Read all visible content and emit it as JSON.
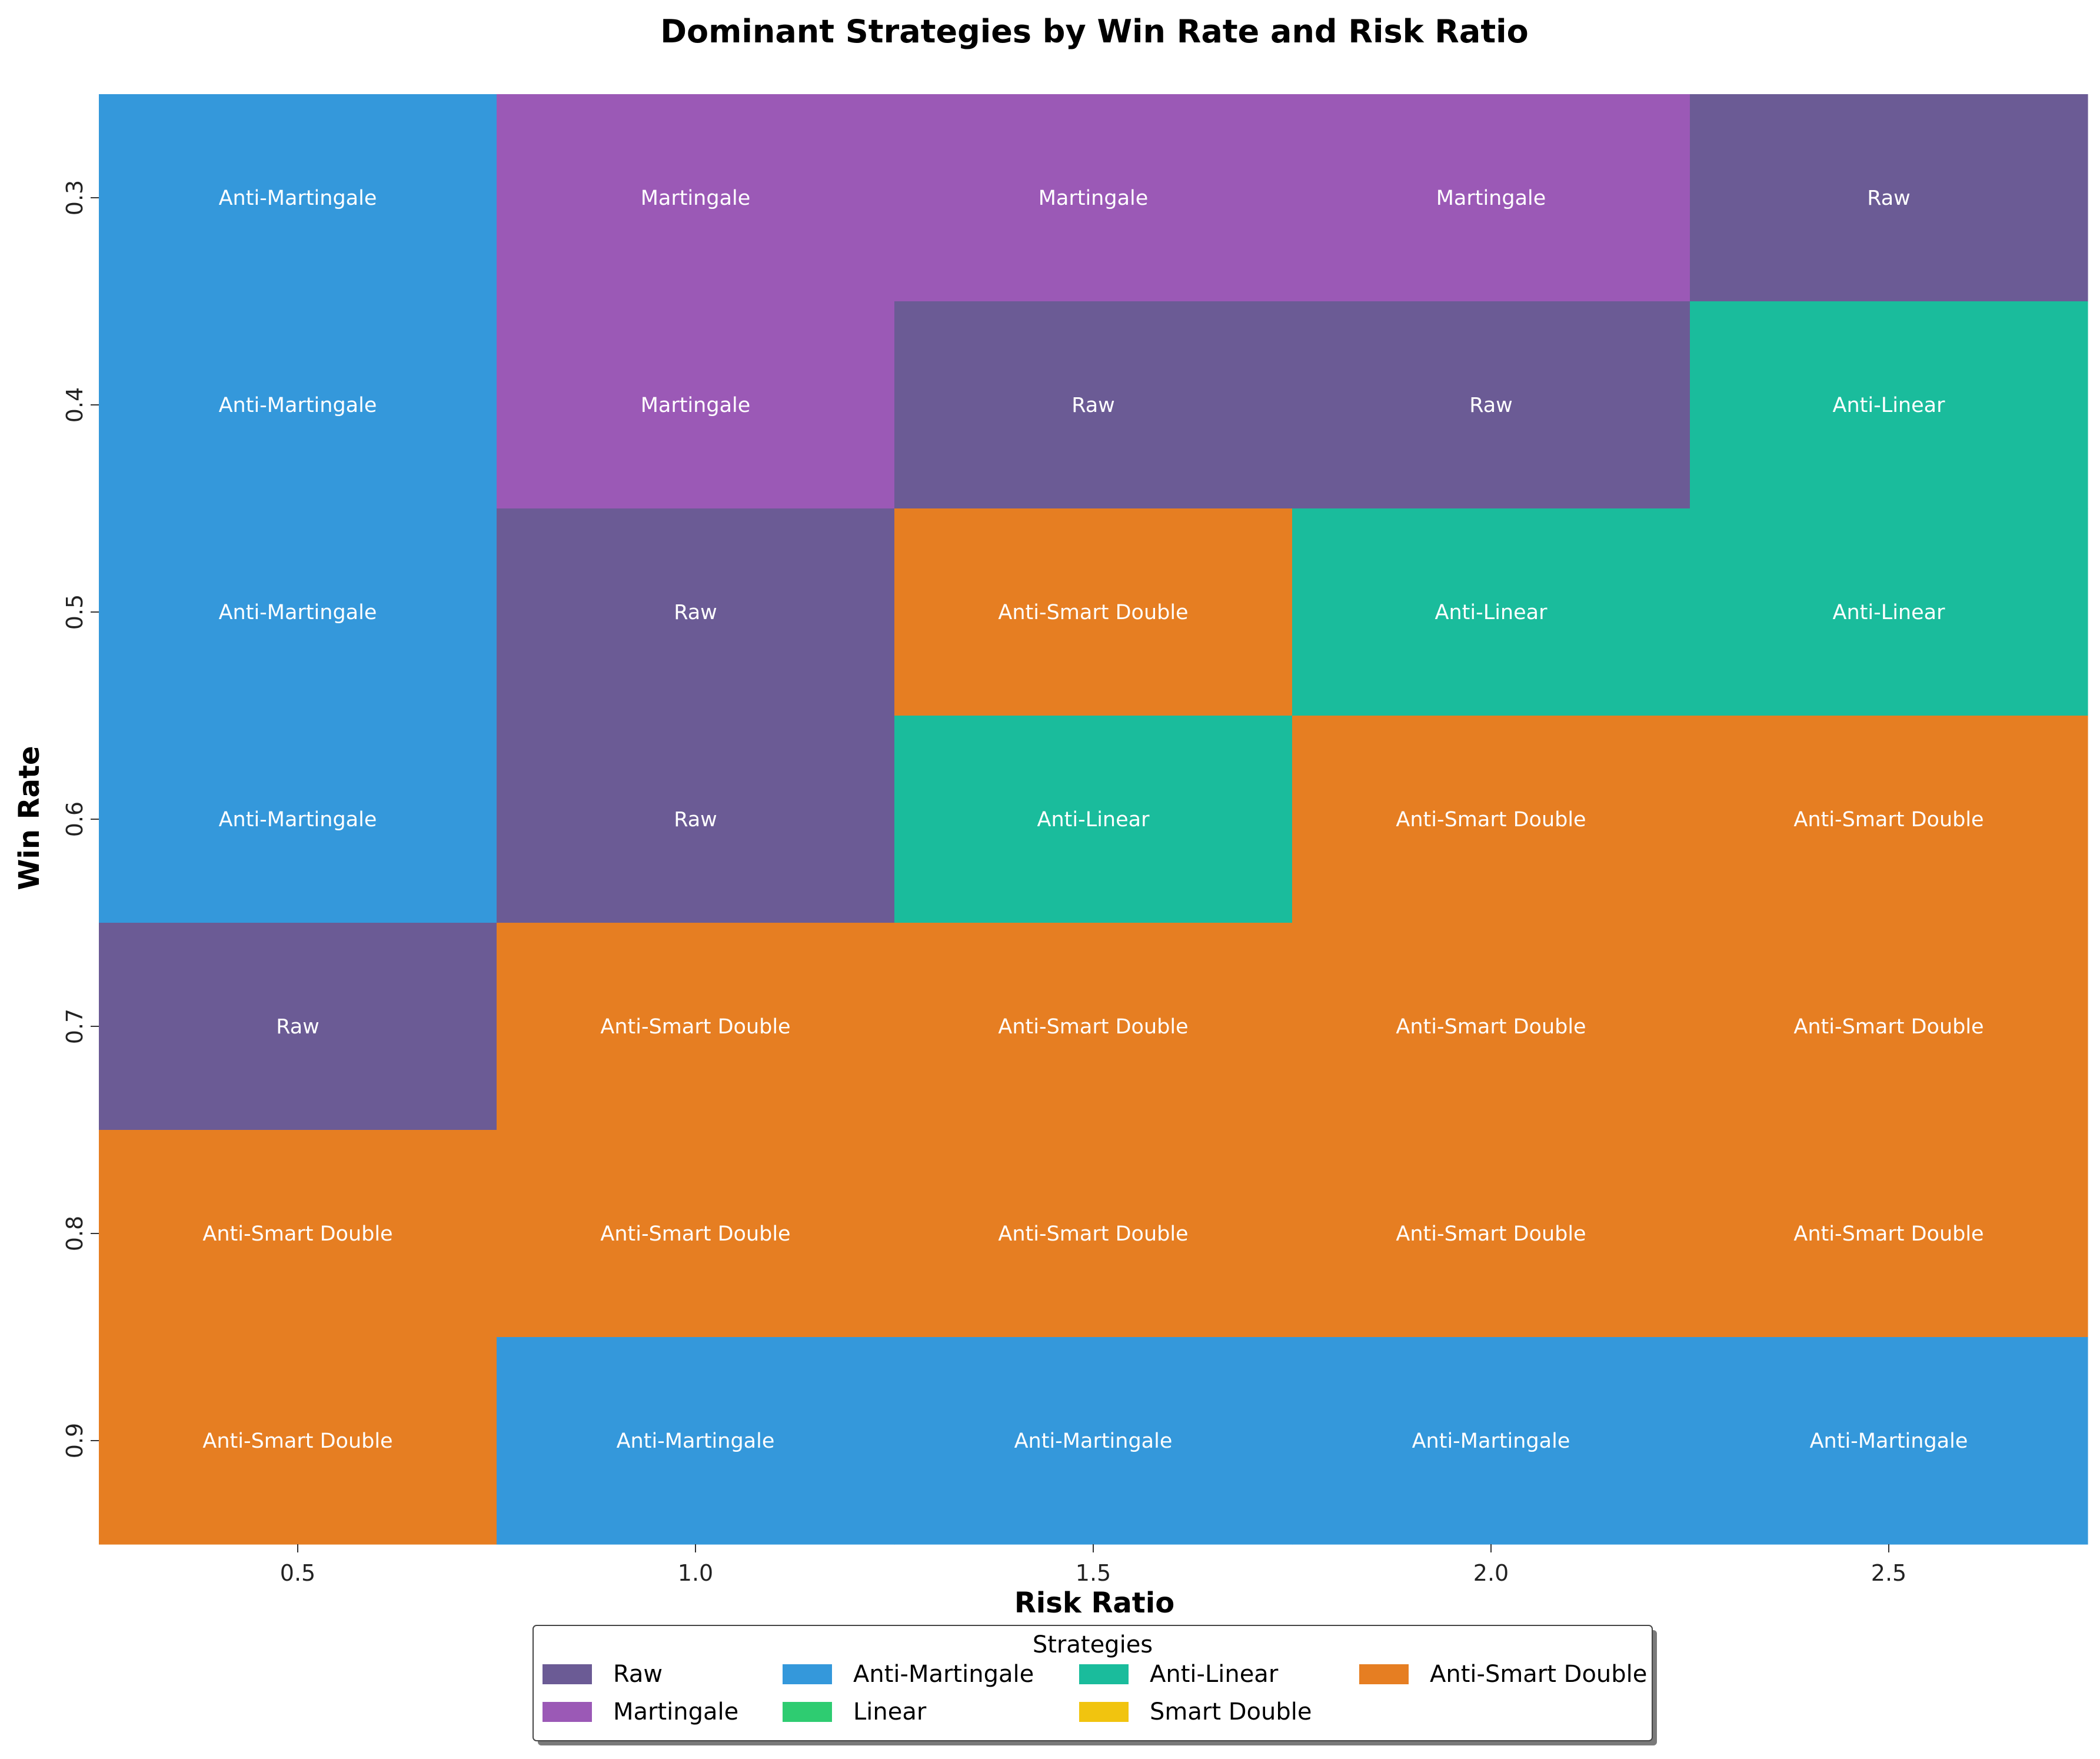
{
  "chart_data": {
    "type": "heatmap",
    "title": "Dominant Strategies by Win Rate and Risk Ratio",
    "xlabel": "Risk Ratio",
    "ylabel": "Win Rate",
    "x": [
      "0.5",
      "1.0",
      "1.5",
      "2.0",
      "2.5"
    ],
    "y": [
      "0.3",
      "0.4",
      "0.5",
      "0.6",
      "0.7",
      "0.8",
      "0.9"
    ],
    "cells": [
      [
        "Anti-Martingale",
        "Martingale",
        "Martingale",
        "Martingale",
        "Raw"
      ],
      [
        "Anti-Martingale",
        "Martingale",
        "Raw",
        "Raw",
        "Anti-Linear"
      ],
      [
        "Anti-Martingale",
        "Raw",
        "Anti-Smart Double",
        "Anti-Linear",
        "Anti-Linear"
      ],
      [
        "Anti-Martingale",
        "Raw",
        "Anti-Linear",
        "Anti-Smart Double",
        "Anti-Smart Double"
      ],
      [
        "Raw",
        "Anti-Smart Double",
        "Anti-Smart Double",
        "Anti-Smart Double",
        "Anti-Smart Double"
      ],
      [
        "Anti-Smart Double",
        "Anti-Smart Double",
        "Anti-Smart Double",
        "Anti-Smart Double",
        "Anti-Smart Double"
      ],
      [
        "Anti-Smart Double",
        "Anti-Martingale",
        "Anti-Martingale",
        "Anti-Martingale",
        "Anti-Martingale"
      ]
    ],
    "legend": {
      "title": "Strategies",
      "placement": "bottom-center",
      "items": [
        {
          "label": "Raw",
          "color": "#6b5b95"
        },
        {
          "label": "Martingale",
          "color": "#9b59b6"
        },
        {
          "label": "Anti-Martingale",
          "color": "#3498db"
        },
        {
          "label": "Linear",
          "color": "#2ecc71"
        },
        {
          "label": "Anti-Linear",
          "color": "#1abc9c"
        },
        {
          "label": "Smart Double",
          "color": "#f1c40f"
        },
        {
          "label": "Anti-Smart Double",
          "color": "#e67e22"
        }
      ]
    },
    "colors": {
      "Raw": "#6b5b95",
      "Martingale": "#9b59b6",
      "Anti-Martingale": "#3498db",
      "Linear": "#2ecc71",
      "Anti-Linear": "#1abc9c",
      "Smart Double": "#f1c40f",
      "Anti-Smart Double": "#e67e22"
    }
  }
}
